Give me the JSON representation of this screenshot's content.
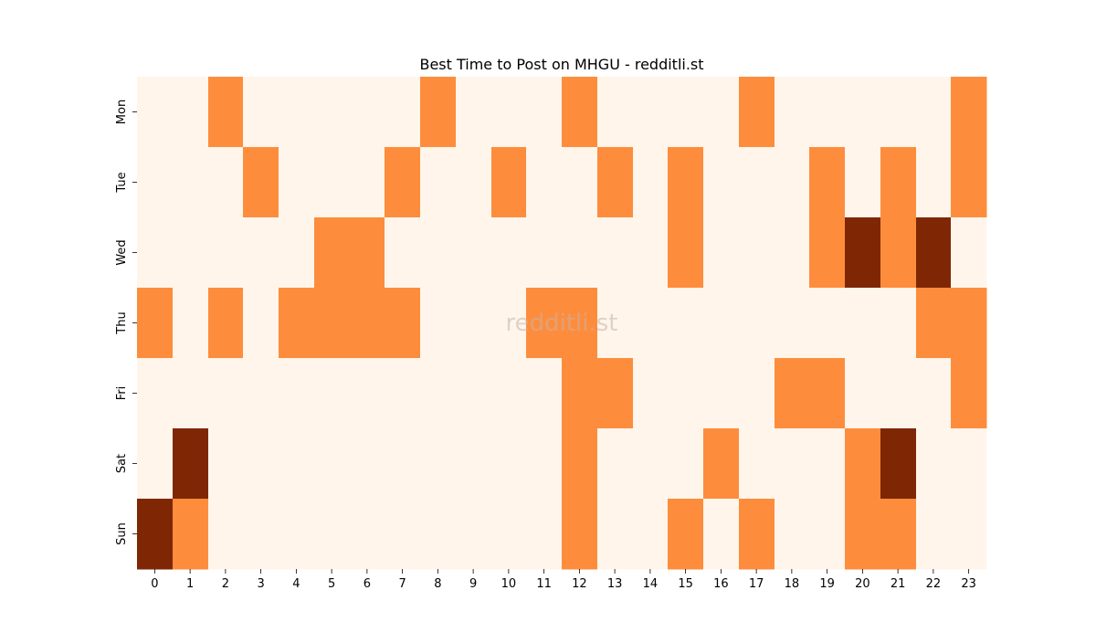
{
  "chart_data": {
    "type": "heatmap",
    "title": "Best Time to Post on MHGU - redditli.st",
    "watermark": "redditli.st",
    "xlabel": "",
    "ylabel": "",
    "x_categories": [
      "0",
      "1",
      "2",
      "3",
      "4",
      "5",
      "6",
      "7",
      "8",
      "9",
      "10",
      "11",
      "12",
      "13",
      "14",
      "15",
      "16",
      "17",
      "18",
      "19",
      "20",
      "21",
      "22",
      "23"
    ],
    "y_categories": [
      "Mon",
      "Tue",
      "Wed",
      "Thu",
      "Fri",
      "Sat",
      "Sun"
    ],
    "levels": [
      0,
      1,
      2
    ],
    "colorscale": {
      "0": "#fff5eb",
      "1": "#fd8d3c",
      "2": "#7f2704"
    },
    "watermark_color": "#c8b4aa",
    "values": [
      [
        0,
        0,
        1,
        0,
        0,
        0,
        0,
        0,
        1,
        0,
        0,
        0,
        1,
        0,
        0,
        0,
        0,
        1,
        0,
        0,
        0,
        0,
        0,
        1
      ],
      [
        0,
        0,
        0,
        1,
        0,
        0,
        0,
        1,
        0,
        0,
        1,
        0,
        0,
        1,
        0,
        1,
        0,
        0,
        0,
        1,
        0,
        1,
        0,
        1
      ],
      [
        0,
        0,
        0,
        0,
        0,
        1,
        1,
        0,
        0,
        0,
        0,
        0,
        0,
        0,
        0,
        1,
        0,
        0,
        0,
        1,
        2,
        1,
        2,
        0
      ],
      [
        1,
        0,
        1,
        0,
        1,
        1,
        1,
        1,
        0,
        0,
        0,
        1,
        1,
        0,
        0,
        0,
        0,
        0,
        0,
        0,
        0,
        0,
        1,
        1
      ],
      [
        0,
        0,
        0,
        0,
        0,
        0,
        0,
        0,
        0,
        0,
        0,
        0,
        1,
        1,
        0,
        0,
        0,
        0,
        1,
        1,
        0,
        0,
        0,
        1
      ],
      [
        0,
        2,
        0,
        0,
        0,
        0,
        0,
        0,
        0,
        0,
        0,
        0,
        1,
        0,
        0,
        0,
        1,
        0,
        0,
        0,
        1,
        2,
        0,
        0
      ],
      [
        2,
        1,
        0,
        0,
        0,
        0,
        0,
        0,
        0,
        0,
        0,
        0,
        1,
        0,
        0,
        1,
        0,
        1,
        0,
        0,
        1,
        1,
        0,
        0
      ]
    ]
  }
}
